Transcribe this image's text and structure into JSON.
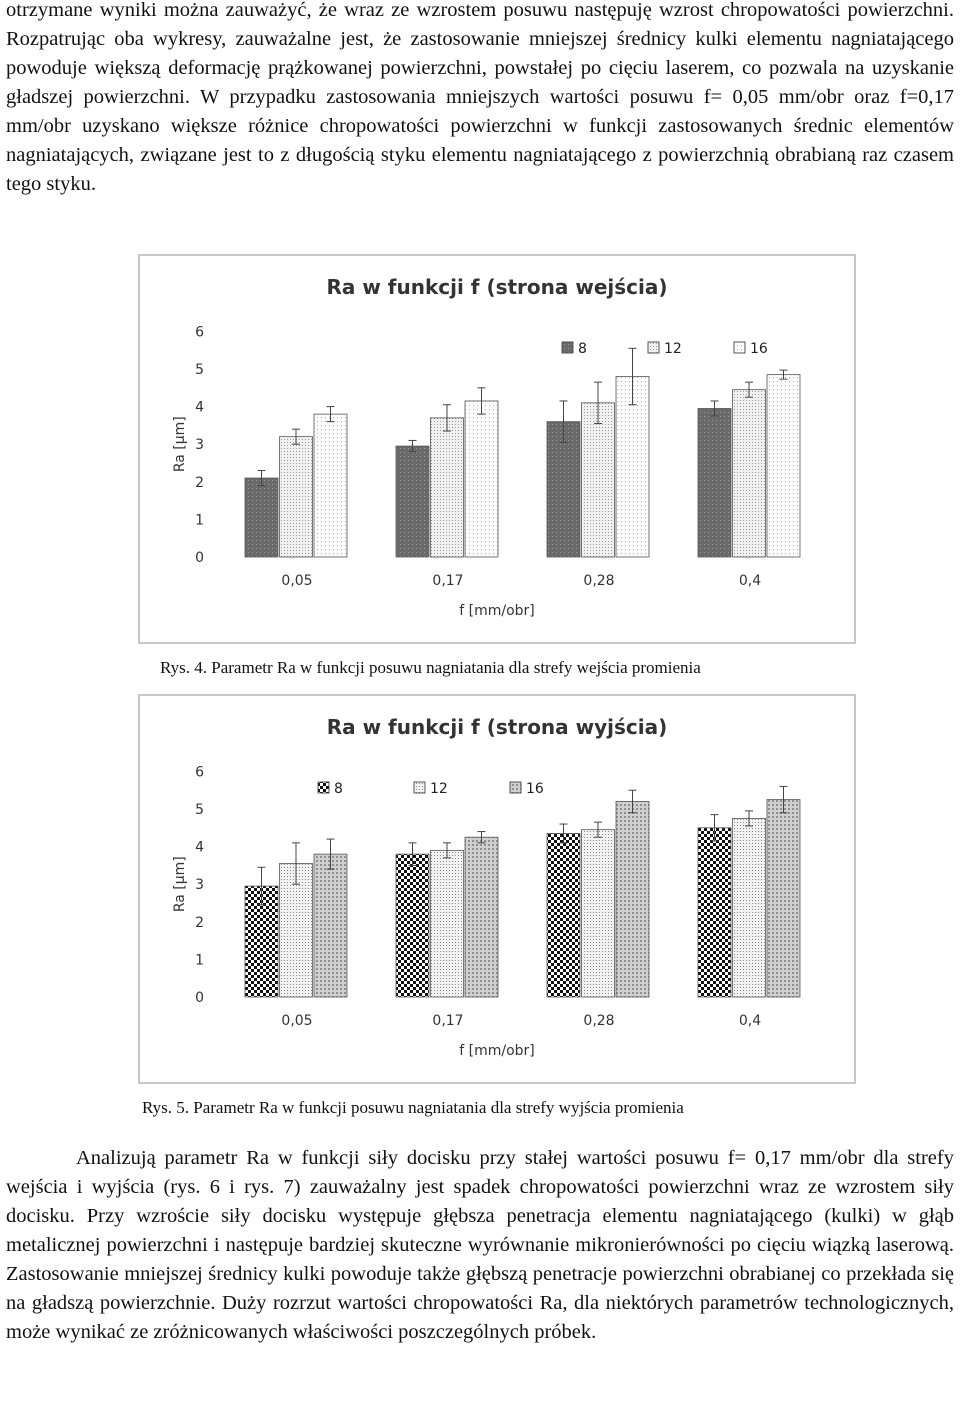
{
  "paragraph_top": "otrzymane wyniki można zauważyć, że wraz ze wzrostem posuwu następuję wzrost chropowatości powierzchni. Rozpatrując oba wykresy, zauważalne jest, że zastosowanie mniejszej średnicy kulki elementu nagniatającego powoduje większą deformację prążkowanej powierzchni, powstałej po cięciu laserem, co pozwala na uzyskanie gładszej powierzchni. W przypadku zastosowania mniejszych wartości posuwu f= 0,05 mm/obr oraz f=0,17 mm/obr uzyskano większe różnice chropowatości powierzchni w funkcji zastosowanych średnic elementów nagniatających, związane jest to z długością styku elementu nagniatającego z powierzchnią obrabianą raz czasem tego styku.",
  "caption_1": "Rys. 4. Parametr Ra w funkcji posuwu nagniatania dla strefy wejścia promienia",
  "caption_2": "Rys. 5. Parametr Ra w funkcji posuwu nagniatania  dla strefy wyjścia promienia",
  "paragraph_bottom": "Analizują parametr Ra w funkcji siły docisku przy stałej wartości posuwu f= 0,17 mm/obr dla strefy wejścia i wyjścia (rys. 6 i rys. 7) zauważalny jest spadek chropowatości powierzchni wraz ze wzrostem siły docisku. Przy wzroście siły docisku występuje głębsza penetracja elementu nagniatającego (kulki) w głąb metalicznej powierzchni i następuje bardziej skuteczne wyrównanie mikronierówności po cięciu wiązką laserową. Zastosowanie mniejszej średnicy kulki powoduje także głębszą penetracje powierzchni obrabianej co przekłada się na gładszą powierzchnie.  Duży rozrzut wartości chropowatości Ra, dla niektórych parametrów technologicznych, może wynikać ze zróżnicowanych właściwości poszczególnych próbek.",
  "chart_data": [
    {
      "type": "bar",
      "title": "Ra w funkcji f (strona wejścia)",
      "xlabel": "f [mm/obr]",
      "ylabel": "Ra [µm]",
      "ylim": [
        0,
        6
      ],
      "yticks": [
        "0",
        "1",
        "2",
        "3",
        "4",
        "5",
        "6"
      ],
      "categories": [
        "0,05",
        "0,17",
        "0,28",
        "0,4"
      ],
      "legend_position": "top-right",
      "series": [
        {
          "name": "8",
          "values": [
            2.1,
            2.95,
            3.6,
            3.95
          ],
          "errors": [
            0.2,
            0.15,
            0.55,
            0.2
          ],
          "fill": "#7a7a7a"
        },
        {
          "name": "12",
          "values": [
            3.2,
            3.7,
            4.1,
            4.45
          ],
          "errors": [
            0.2,
            0.35,
            0.55,
            0.2
          ],
          "fill": "#dadada"
        },
        {
          "name": "16",
          "values": [
            3.8,
            4.15,
            4.8,
            4.85
          ],
          "errors": [
            0.2,
            0.35,
            0.75,
            0.12
          ],
          "fill": "#f4f4f4"
        }
      ]
    },
    {
      "type": "bar",
      "title": "Ra w funkcji f (strona wyjścia)",
      "xlabel": "f [mm/obr]",
      "ylabel": "Ra [µm]",
      "ylim": [
        0,
        6
      ],
      "yticks": [
        "0",
        "1",
        "2",
        "3",
        "4",
        "5",
        "6"
      ],
      "categories": [
        "0,05",
        "0,17",
        "0,28",
        "0,4"
      ],
      "legend_position": "top-left",
      "series": [
        {
          "name": "8",
          "values": [
            2.95,
            3.8,
            4.35,
            4.5
          ],
          "errors": [
            0.5,
            0.3,
            0.25,
            0.35
          ],
          "fill": "#2a2a2a"
        },
        {
          "name": "12",
          "values": [
            3.55,
            3.9,
            4.45,
            4.75
          ],
          "errors": [
            0.55,
            0.2,
            0.2,
            0.2
          ],
          "fill": "#e0e0e0"
        },
        {
          "name": "16",
          "values": [
            3.8,
            4.25,
            5.2,
            5.25
          ],
          "errors": [
            0.4,
            0.15,
            0.3,
            0.35
          ],
          "fill": "#b8b8b8"
        }
      ]
    }
  ]
}
